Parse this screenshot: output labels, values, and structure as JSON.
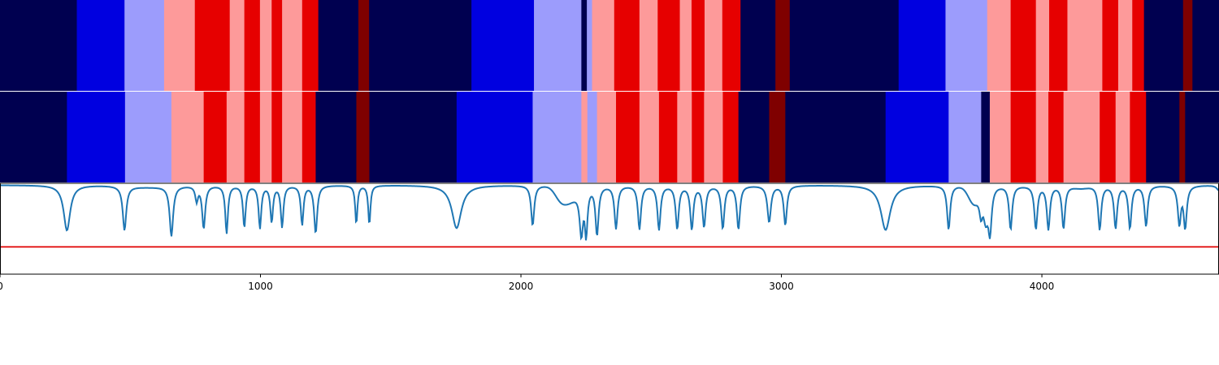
{
  "chart_data": {
    "type": "heatmap",
    "x_range": [
      0,
      4680
    ],
    "x_ticks": [
      0,
      1000,
      2000,
      3000,
      4000
    ],
    "x_tick_labels": [
      "0",
      "1000",
      "2000",
      "3000",
      "4000"
    ],
    "grid": false,
    "colors": {
      "1": "#000050",
      "2": "#0000e0",
      "3": "#9c9cfc",
      "4": "#fd9a9a",
      "5": "#e60000",
      "6": "#7f0000",
      "axis": "#000000",
      "line": "#1f77b4",
      "threshold": "#e00000"
    },
    "rows": [
      {
        "segments": [
          [
            0,
            295,
            1
          ],
          [
            295,
            478,
            2
          ],
          [
            478,
            630,
            3
          ],
          [
            630,
            748,
            4
          ],
          [
            748,
            882,
            5
          ],
          [
            882,
            938,
            4
          ],
          [
            938,
            998,
            5
          ],
          [
            998,
            1043,
            4
          ],
          [
            1043,
            1083,
            5
          ],
          [
            1083,
            1160,
            4
          ],
          [
            1160,
            1222,
            5
          ],
          [
            1222,
            1376,
            1
          ],
          [
            1376,
            1417,
            6
          ],
          [
            1417,
            1810,
            1
          ],
          [
            1810,
            2050,
            2
          ],
          [
            2050,
            2232,
            3
          ],
          [
            2232,
            2253,
            1
          ],
          [
            2253,
            2273,
            3
          ],
          [
            2273,
            2358,
            4
          ],
          [
            2358,
            2455,
            5
          ],
          [
            2455,
            2525,
            4
          ],
          [
            2525,
            2610,
            5
          ],
          [
            2610,
            2655,
            4
          ],
          [
            2655,
            2705,
            5
          ],
          [
            2705,
            2773,
            4
          ],
          [
            2773,
            2843,
            5
          ],
          [
            2843,
            2977,
            1
          ],
          [
            2977,
            3032,
            6
          ],
          [
            3032,
            3450,
            1
          ],
          [
            3450,
            3630,
            2
          ],
          [
            3630,
            3790,
            3
          ],
          [
            3790,
            3880,
            4
          ],
          [
            3880,
            3977,
            5
          ],
          [
            3977,
            4028,
            4
          ],
          [
            4028,
            4098,
            5
          ],
          [
            4098,
            4232,
            4
          ],
          [
            4232,
            4293,
            5
          ],
          [
            4293,
            4347,
            4
          ],
          [
            4347,
            4392,
            5
          ],
          [
            4392,
            4542,
            1
          ],
          [
            4542,
            4578,
            6
          ],
          [
            4578,
            4680,
            1
          ]
        ]
      },
      {
        "segments": [
          [
            0,
            257,
            1
          ],
          [
            257,
            480,
            2
          ],
          [
            480,
            658,
            3
          ],
          [
            658,
            782,
            4
          ],
          [
            782,
            870,
            5
          ],
          [
            870,
            938,
            4
          ],
          [
            938,
            998,
            5
          ],
          [
            998,
            1043,
            4
          ],
          [
            1043,
            1083,
            5
          ],
          [
            1083,
            1160,
            4
          ],
          [
            1160,
            1212,
            5
          ],
          [
            1212,
            1368,
            1
          ],
          [
            1368,
            1418,
            6
          ],
          [
            1418,
            1753,
            1
          ],
          [
            1753,
            2045,
            2
          ],
          [
            2045,
            2232,
            3
          ],
          [
            2232,
            2255,
            4
          ],
          [
            2255,
            2292,
            3
          ],
          [
            2292,
            2365,
            4
          ],
          [
            2365,
            2455,
            5
          ],
          [
            2455,
            2530,
            4
          ],
          [
            2530,
            2600,
            5
          ],
          [
            2600,
            2656,
            4
          ],
          [
            2656,
            2703,
            5
          ],
          [
            2703,
            2775,
            4
          ],
          [
            2775,
            2835,
            5
          ],
          [
            2835,
            2953,
            1
          ],
          [
            2953,
            3015,
            6
          ],
          [
            3015,
            3400,
            1
          ],
          [
            3400,
            3642,
            2
          ],
          [
            3642,
            3767,
            3
          ],
          [
            3767,
            3800,
            1
          ],
          [
            3800,
            3880,
            4
          ],
          [
            3880,
            3977,
            5
          ],
          [
            3977,
            4025,
            4
          ],
          [
            4025,
            4083,
            5
          ],
          [
            4083,
            4222,
            4
          ],
          [
            4222,
            4283,
            5
          ],
          [
            4283,
            4338,
            4
          ],
          [
            4338,
            4400,
            5
          ],
          [
            4400,
            4528,
            1
          ],
          [
            4528,
            4550,
            6
          ],
          [
            4550,
            4680,
            1
          ]
        ]
      }
    ],
    "signal": {
      "y_range": [
        0,
        1.5
      ],
      "threshold": 0.45,
      "baseline": 1.47,
      "dips": [
        [
          257,
          0.72,
          15
        ],
        [
          478,
          0.72,
          8
        ],
        [
          658,
          0.62,
          8
        ],
        [
          755,
          1.2,
          6
        ],
        [
          782,
          0.74,
          7
        ],
        [
          870,
          0.66,
          6
        ],
        [
          938,
          0.76,
          6
        ],
        [
          998,
          0.74,
          6
        ],
        [
          1043,
          0.84,
          6
        ],
        [
          1083,
          0.76,
          6
        ],
        [
          1160,
          0.8,
          6
        ],
        [
          1212,
          0.67,
          7
        ],
        [
          1368,
          0.82,
          5
        ],
        [
          1418,
          0.81,
          5
        ],
        [
          1753,
          0.76,
          22
        ],
        [
          2045,
          0.8,
          7
        ],
        [
          2232,
          0.58,
          8
        ],
        [
          2250,
          0.55,
          6
        ],
        [
          2292,
          0.62,
          7
        ],
        [
          2365,
          0.74,
          7
        ],
        [
          2455,
          0.73,
          7
        ],
        [
          2530,
          0.72,
          7
        ],
        [
          2600,
          0.73,
          7
        ],
        [
          2656,
          0.72,
          7
        ],
        [
          2703,
          0.76,
          7
        ],
        [
          2775,
          0.74,
          7
        ],
        [
          2835,
          0.73,
          7
        ],
        [
          2953,
          0.85,
          8
        ],
        [
          3015,
          0.8,
          7
        ],
        [
          3400,
          0.73,
          22
        ],
        [
          3642,
          0.73,
          7
        ],
        [
          3767,
          0.88,
          8
        ],
        [
          3800,
          0.58,
          8
        ],
        [
          3880,
          0.73,
          7
        ],
        [
          3977,
          0.73,
          7
        ],
        [
          4025,
          0.72,
          7
        ],
        [
          4083,
          0.74,
          7
        ],
        [
          4222,
          0.72,
          7
        ],
        [
          4283,
          0.74,
          7
        ],
        [
          4338,
          0.74,
          7
        ],
        [
          4400,
          0.78,
          7
        ],
        [
          4528,
          0.78,
          7
        ],
        [
          4550,
          0.72,
          7
        ],
        [
          4680,
          1.38,
          10
        ]
      ],
      "bumps": [
        [
          570,
          1.44,
          120
        ],
        [
          2185,
          1.22,
          45
        ],
        [
          3740,
          1.18,
          30
        ],
        [
          2150,
          1.34,
          30
        ],
        [
          4150,
          1.43,
          40
        ],
        [
          3785,
          0.85,
          12
        ]
      ]
    }
  }
}
